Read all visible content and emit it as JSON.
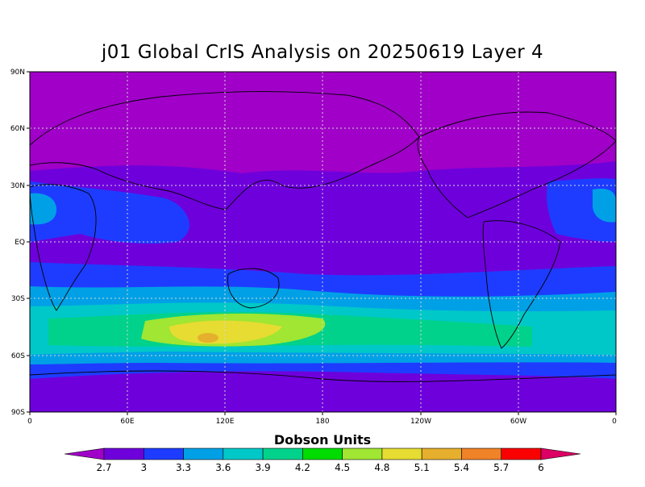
{
  "title": "j01 Global CrIS Analysis on 20250619 Layer 4",
  "colorbar_label": "Dobson Units",
  "lat_ticks": [
    "90N",
    "60N",
    "30N",
    "EQ",
    "30S",
    "60S",
    "90S"
  ],
  "lon_ticks": [
    "0",
    "60E",
    "120E",
    "180",
    "120W",
    "60W",
    "0"
  ],
  "colorbar": {
    "labels": [
      "2.7",
      "3",
      "3.3",
      "3.6",
      "3.9",
      "4.2",
      "4.5",
      "4.8",
      "5.1",
      "5.4",
      "5.7",
      "6"
    ],
    "colors": [
      "#a000c8",
      "#6e00dc",
      "#1e3cff",
      "#00a0e6",
      "#00c8c8",
      "#00d28c",
      "#00dc00",
      "#a0e632",
      "#e6dc32",
      "#e6af2d",
      "#f08228",
      "#fa0000",
      "#dc0064"
    ]
  },
  "chart_data": {
    "type": "heatmap",
    "title": "j01 Global CrIS Analysis on 20250619 Layer 4",
    "xlabel": "",
    "ylabel": "",
    "xlim": [
      0,
      360
    ],
    "ylim": [
      -90,
      90
    ],
    "colorbar_label": "Dobson Units",
    "levels": [
      2.7,
      3,
      3.3,
      3.6,
      3.9,
      4.2,
      4.5,
      4.8,
      5.1,
      5.4,
      5.7,
      6
    ],
    "grid": true
  }
}
